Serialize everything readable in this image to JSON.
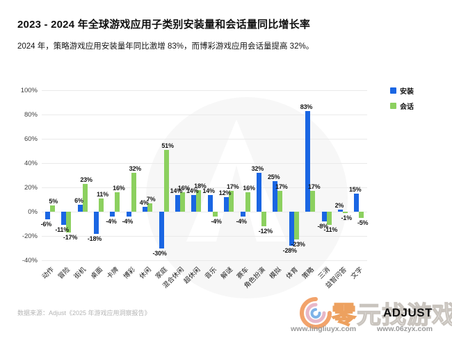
{
  "header": {
    "title": "2023 - 2024 年全球游戏应用子类别安装量和会话量同比增长率",
    "subtitle": "2024 年，策略游戏应用安装量年同比激增 83%，而博彩游戏应用会话量提高 32%。"
  },
  "chart_data": {
    "type": "bar",
    "title": "2023 - 2024 年全球游戏应用子类别安装量和会话量同比增长率",
    "categories": [
      "动作",
      "冒险",
      "街机",
      "桌面",
      "卡牌",
      "博彩",
      "休闲",
      "家庭",
      "混合休闲",
      "超休闲",
      "音乐",
      "解谜",
      "赛车",
      "角色扮演",
      "模拟",
      "体育",
      "策略",
      "三消",
      "益智问答",
      "文字"
    ],
    "series": [
      {
        "name": "安装",
        "color": "#1a66e3",
        "values": [
          -6,
          -11,
          6,
          -18,
          -4,
          -4,
          4,
          -30,
          14,
          14,
          14,
          12,
          -4,
          32,
          25,
          -28,
          83,
          -8,
          2,
          15
        ]
      },
      {
        "name": "会话",
        "color": "#8cd05f",
        "values": [
          5,
          -17,
          23,
          11,
          16,
          32,
          7,
          51,
          16,
          18,
          -4,
          17,
          16,
          -12,
          17,
          -23,
          17,
          -11,
          -1,
          -5
        ]
      }
    ],
    "value_suffix": "%",
    "yticks": [
      100,
      80,
      60,
      40,
      20,
      0,
      -20,
      -40
    ],
    "ylim": [
      -40,
      100
    ],
    "grid": true,
    "legend_position": "top-right"
  },
  "footer": {
    "source": "数据来源：Adjust《2025 年游戏应用洞察报告》"
  },
  "branding": {
    "adjust_logo": "ADJUST",
    "watermark_text": "零元找游戏",
    "watermark_urls": [
      "www.lingliuyx.com",
      "www.06zyx.com"
    ]
  }
}
